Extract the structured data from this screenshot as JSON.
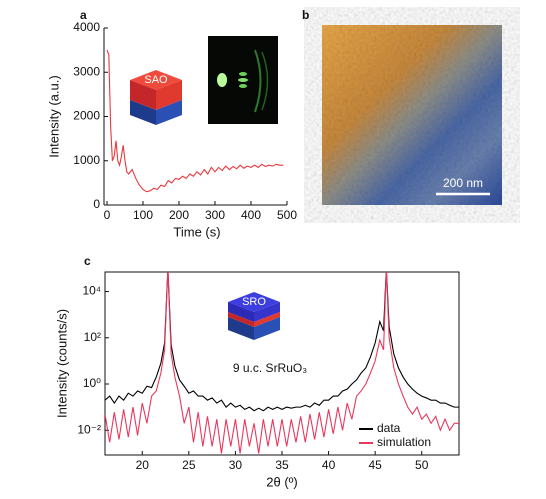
{
  "chart_data": [
    {
      "type": "line",
      "panel_label": "a",
      "x_label": "Time (s)",
      "y_label": "Intensity (a.u.)",
      "inset_label": "SAO",
      "xlim": [
        0,
        500
      ],
      "xticks": [
        0,
        100,
        200,
        300,
        400,
        500
      ],
      "ylim": [
        0,
        4000
      ],
      "yticks": [
        0,
        1000,
        2000,
        3000,
        4000
      ],
      "x": [
        0,
        5,
        10,
        15,
        20,
        25,
        30,
        35,
        40,
        45,
        50,
        55,
        60,
        70,
        80,
        90,
        100,
        110,
        120,
        130,
        140,
        150,
        160,
        170,
        180,
        190,
        200,
        210,
        220,
        230,
        240,
        250,
        260,
        270,
        280,
        290,
        300,
        310,
        320,
        330,
        340,
        350,
        360,
        370,
        380,
        390,
        400,
        410,
        420,
        430,
        440,
        450,
        460,
        470,
        480,
        490
      ],
      "series": [
        {
          "name": null,
          "color": "#e8383d",
          "values": [
            3500,
            3400,
            1800,
            1000,
            1100,
            1450,
            1000,
            900,
            1100,
            1350,
            1000,
            750,
            700,
            800,
            600,
            450,
            350,
            300,
            320,
            380,
            350,
            450,
            420,
            550,
            500,
            600,
            580,
            650,
            600,
            700,
            650,
            750,
            680,
            800,
            700,
            850,
            750,
            850,
            780,
            880,
            800,
            870,
            820,
            900,
            830,
            880,
            850,
            900,
            850,
            920,
            870,
            900,
            880,
            920,
            900,
            900
          ]
        }
      ]
    },
    {
      "type": "image",
      "panel_label": "b",
      "scale_bar": "200 nm"
    },
    {
      "type": "line",
      "panel_label": "c",
      "x_label": "2θ (º)",
      "y_label": "Intensity (counts/s)",
      "inset_label": "SRO",
      "annotation": "9 u.c. SrRuO₃",
      "log_y": true,
      "legend": "lower right",
      "xlim": [
        16,
        54
      ],
      "xticks": [
        20,
        25,
        30,
        35,
        40,
        45,
        50
      ],
      "ylim": [
        0.00085,
        70000
      ],
      "yticks": [
        {
          "value": 0.01,
          "label": "10⁻²"
        },
        {
          "value": 1,
          "label": "10⁰"
        },
        {
          "value": 100,
          "label": "10²"
        },
        {
          "value": 10000,
          "label": "10⁴"
        }
      ],
      "x": [
        16,
        16.5,
        17,
        17.5,
        18,
        18.5,
        19,
        19.5,
        20,
        20.5,
        21,
        21.5,
        22,
        22.4,
        22.75,
        23.1,
        23.5,
        24,
        24.5,
        25,
        25.5,
        26,
        26.5,
        27,
        27.5,
        28,
        28.5,
        29,
        29.5,
        30,
        30.5,
        31,
        31.5,
        32,
        32.5,
        33,
        33.5,
        34,
        34.5,
        35,
        35.5,
        36,
        36.5,
        37,
        37.5,
        38,
        38.5,
        39,
        39.5,
        40,
        40.5,
        41,
        41.5,
        42,
        42.5,
        43,
        43.5,
        44,
        44.5,
        45,
        45.5,
        45.9,
        46.2,
        46.5,
        47,
        47.5,
        48,
        48.5,
        49,
        49.5,
        50,
        50.5,
        51,
        51.5,
        52,
        52.5,
        53,
        53.5,
        54
      ],
      "series": [
        {
          "name": "data",
          "color": "#000000",
          "values": [
            0.2,
            0.3,
            0.15,
            0.3,
            0.2,
            0.4,
            0.3,
            0.5,
            0.4,
            0.8,
            0.7,
            2,
            8,
            60,
            100000,
            50,
            6,
            1.5,
            0.8,
            0.4,
            0.5,
            0.3,
            0.3,
            0.2,
            0.25,
            0.15,
            0.2,
            0.1,
            0.15,
            0.1,
            0.12,
            0.08,
            0.1,
            0.07,
            0.09,
            0.07,
            0.1,
            0.08,
            0.1,
            0.08,
            0.1,
            0.09,
            0.1,
            0.1,
            0.12,
            0.1,
            0.15,
            0.12,
            0.2,
            0.2,
            0.3,
            0.3,
            0.5,
            0.6,
            1,
            1.5,
            3,
            5,
            15,
            60,
            500,
            200,
            100000,
            300,
            20,
            5,
            2,
            1,
            0.6,
            0.4,
            0.3,
            0.25,
            0.2,
            0.2,
            0.15,
            0.15,
            0.12,
            0.1,
            0.1
          ]
        },
        {
          "name": "simulation",
          "color": "#e8385e",
          "values": [
            0.05,
            0.003,
            0.06,
            0.004,
            0.08,
            0.005,
            0.1,
            0.006,
            0.15,
            0.02,
            0.3,
            0.5,
            3,
            30,
            100000,
            20,
            2,
            0.3,
            0.02,
            0.1,
            0.003,
            0.06,
            0.002,
            0.04,
            0.002,
            0.03,
            0.001,
            0.03,
            0.002,
            0.03,
            0.001,
            0.03,
            0.002,
            0.02,
            0.001,
            0.03,
            0.002,
            0.03,
            0.002,
            0.03,
            0.002,
            0.03,
            0.003,
            0.04,
            0.003,
            0.05,
            0.004,
            0.06,
            0.005,
            0.08,
            0.007,
            0.1,
            0.01,
            0.15,
            0.03,
            0.3,
            0.5,
            1,
            3,
            10,
            80,
            30,
            100000,
            100,
            5,
            1,
            0.3,
            0.1,
            0.05,
            0.1,
            0.03,
            0.05,
            0.02,
            0.04,
            0.01,
            0.03,
            0.01,
            0.02,
            0.02
          ]
        }
      ]
    }
  ]
}
